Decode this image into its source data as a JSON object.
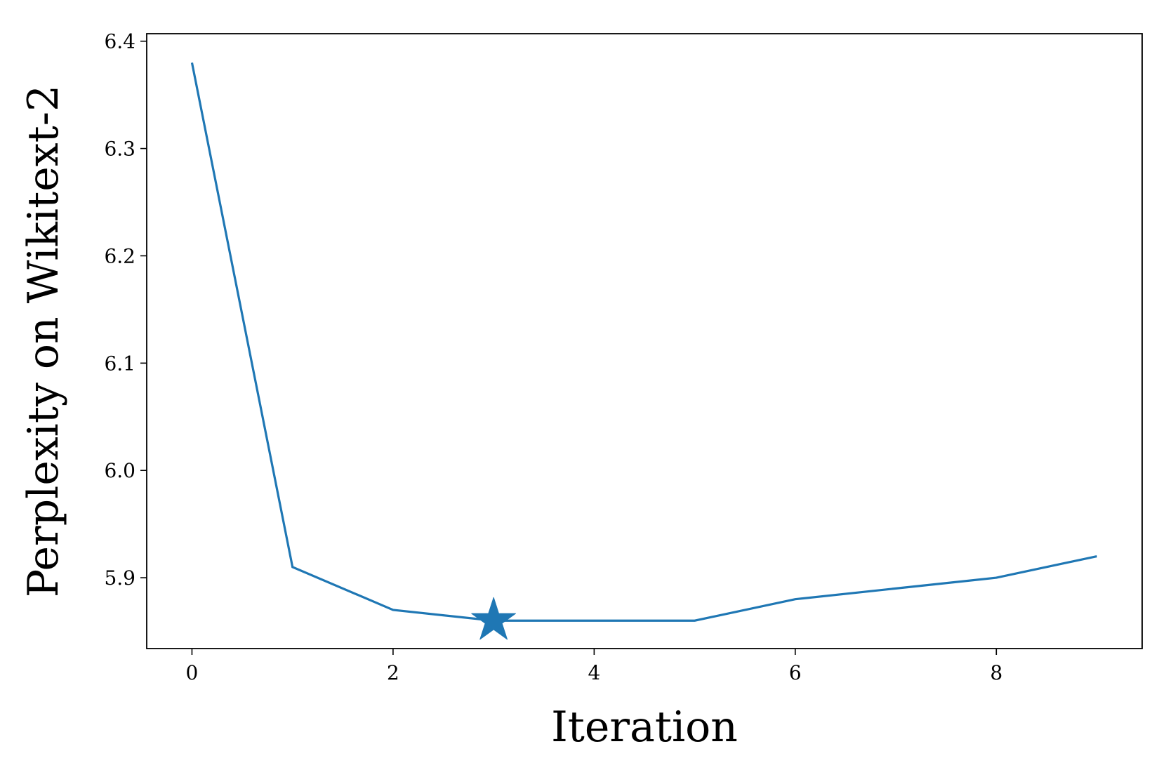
{
  "chart_data": {
    "type": "line",
    "x_label": "Iteration",
    "y_label": "Perplexity on Wikitext-2",
    "x": [
      0,
      1,
      2,
      3,
      4,
      5,
      6,
      7,
      8,
      9
    ],
    "series": [
      {
        "color": "#1f77b4",
        "values": [
          6.38,
          5.91,
          5.87,
          5.86,
          5.86,
          5.86,
          5.88,
          5.89,
          5.9,
          5.92
        ]
      }
    ],
    "highlight_index": 3,
    "highlight_marker": "star",
    "xlim": [
      -0.45,
      9.45
    ],
    "ylim": [
      5.834,
      6.407
    ],
    "xticks": [
      0,
      2,
      4,
      6,
      8
    ],
    "yticks": [
      5.9,
      {
        "value": 6,
        "label": "6.0"
      },
      6.1,
      6.2,
      6.3,
      6.4
    ],
    "grid": false
  }
}
